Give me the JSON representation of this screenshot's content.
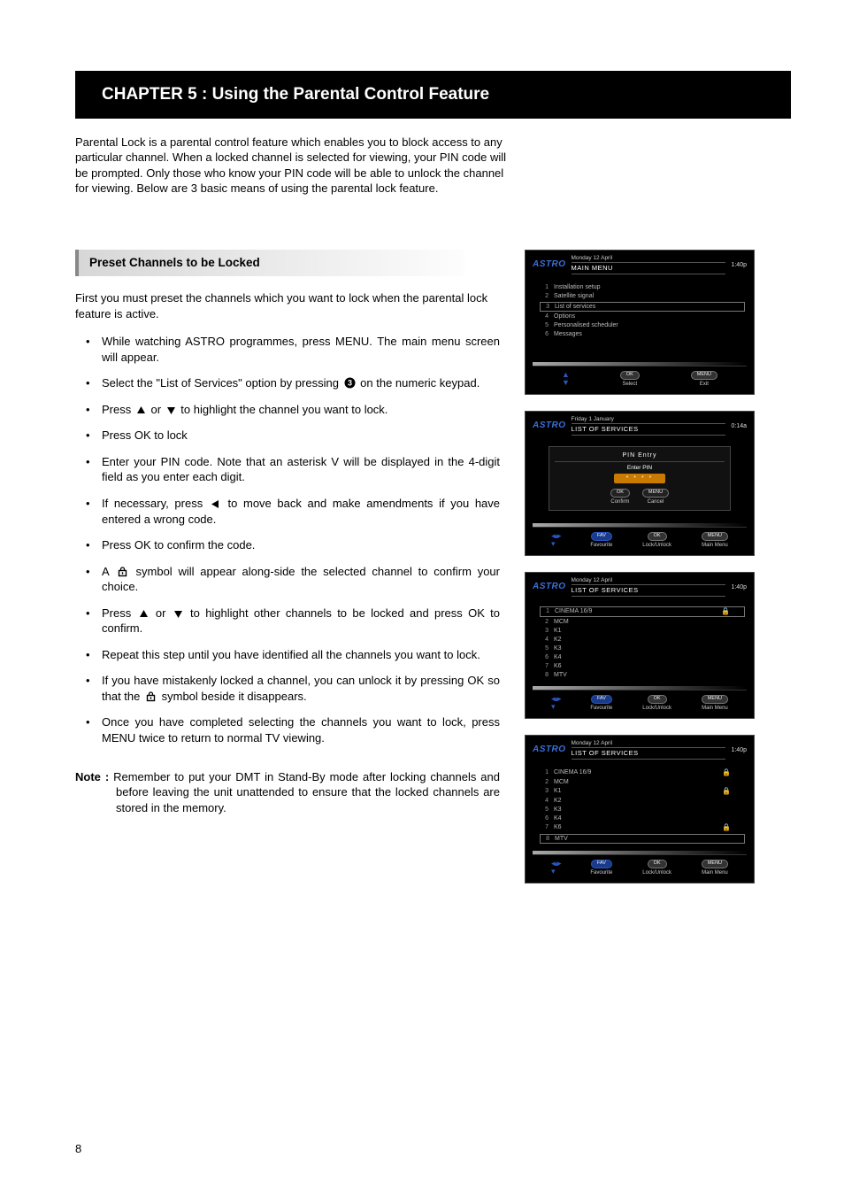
{
  "page_number": "8",
  "chapter_title": "CHAPTER 5 : Using the Parental Control Feature",
  "intro": "Parental Lock is a parental control feature which enables you to block access to any particular channel.  When a locked channel is selected for viewing, your PIN code will be prompted.  Only those who know your PIN code will be able to unlock the channel for viewing.  Below are 3 basic means of using the parental lock feature.",
  "section_heading": "Preset Channels to be Locked",
  "lead": "First you must preset the channels which you want to lock when the parental lock feature is active.",
  "steps": {
    "s1": "While watching ASTRO programmes, press MENU. The main menu screen will appear.",
    "s2a": "Select the \"List of Services\" option by pressing ",
    "s2b": " on the numeric keypad.",
    "s3a": "Press  ",
    "s3b": "  or  ",
    "s3c": "  to highlight the channel you want to lock.",
    "s4": "Press OK to lock",
    "s5": "Enter your PIN code.  Note that an asterisk V will be displayed in the 4-digit field as you enter each digit.",
    "s6a": "If necessary, press ",
    "s6b": " to move back and make amendments if you have entered a wrong code.",
    "s7": "Press OK to confirm the code.",
    "s8a": "A  ",
    "s8b": "  symbol will appear along-side the selected channel to confirm your choice.",
    "s9a": "Press  ",
    "s9b": " or ",
    "s9c": " to highlight other channels to be locked and press OK to confirm.",
    "s10": "Repeat this step until you have identified all the channels you want to lock.",
    "s11a": "If you have mistakenly locked a channel, you can unlock it by pressing OK so that the ",
    "s11b": " symbol beside it disappears.",
    "s12": "Once you have completed selecting the channels you want to lock, press MENU twice to return to normal TV viewing."
  },
  "note_label": "Note : ",
  "note_text": "Remember to put your DMT in Stand-By mode after locking channels and before leaving the unit unattended to ensure that the locked channels are stored in the memory.",
  "screens": {
    "brand": "ASTRO",
    "s1": {
      "date": "Monday 12 April",
      "time": "1:40p",
      "title": "MAIN MENU",
      "items": [
        {
          "n": "1",
          "t": "Installation setup"
        },
        {
          "n": "2",
          "t": "Satellite signal"
        },
        {
          "n": "3",
          "t": "List of services",
          "boxed": true
        },
        {
          "n": "4",
          "t": "Options"
        },
        {
          "n": "5",
          "t": "Personalised scheduler"
        },
        {
          "n": "6",
          "t": "Messages"
        }
      ],
      "foot_left": "Select",
      "foot_right": "Exit",
      "pill_left": "OK",
      "pill_right": "MENU"
    },
    "s2": {
      "date": "Friday 1 January",
      "time": "0:14a",
      "title": "LIST OF SERVICES",
      "pin_title": "PIN Entry",
      "pin_label": "Enter PIN",
      "pin_mask": "* * * *",
      "confirm": "Confirm",
      "cancel": "Cancel",
      "foot": [
        {
          "p": "FAV",
          "l": "Favourite"
        },
        {
          "p": "OK",
          "l": "Lock/Unlock"
        },
        {
          "p": "MENU",
          "l": "Main Menu"
        }
      ]
    },
    "s3": {
      "date": "Monday 12 April",
      "time": "1:40p",
      "title": "LIST OF SERVICES",
      "items": [
        {
          "n": "1",
          "t": "CINEMA 16/9",
          "boxed": true,
          "locked": true
        },
        {
          "n": "2",
          "t": "MCM"
        },
        {
          "n": "3",
          "t": "K1"
        },
        {
          "n": "4",
          "t": "K2"
        },
        {
          "n": "5",
          "t": "K3"
        },
        {
          "n": "6",
          "t": "K4"
        },
        {
          "n": "7",
          "t": "K6"
        },
        {
          "n": "8",
          "t": "MTV"
        }
      ],
      "foot": [
        {
          "p": "FAV",
          "l": "Favourite"
        },
        {
          "p": "OK",
          "l": "Lock/Unlock"
        },
        {
          "p": "MENU",
          "l": "Main Menu"
        }
      ]
    },
    "s4": {
      "date": "Monday 12 April",
      "time": "1:40p",
      "title": "LIST OF SERVICES",
      "items": [
        {
          "n": "1",
          "t": "CINEMA 16/9",
          "locked": true
        },
        {
          "n": "2",
          "t": "MCM"
        },
        {
          "n": "3",
          "t": "K1",
          "locked": true
        },
        {
          "n": "4",
          "t": "K2"
        },
        {
          "n": "5",
          "t": "K3"
        },
        {
          "n": "6",
          "t": "K4"
        },
        {
          "n": "7",
          "t": "K6",
          "locked": true
        },
        {
          "n": "8",
          "t": "MTV",
          "boxed": true
        }
      ],
      "foot": [
        {
          "p": "FAV",
          "l": "Favourite"
        },
        {
          "p": "OK",
          "l": "Lock/Unlock"
        },
        {
          "p": "MENU",
          "l": "Main Menu"
        }
      ]
    }
  }
}
